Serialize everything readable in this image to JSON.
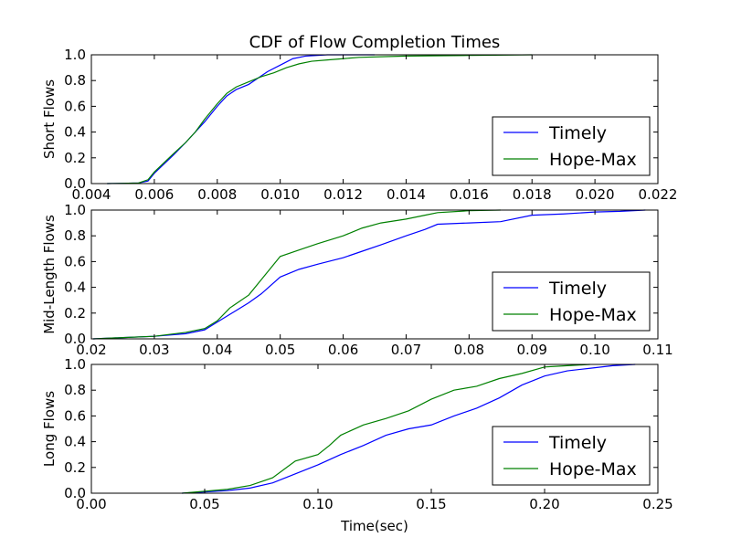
{
  "figure": {
    "title": "CDF of Flow Completion Times",
    "xlabel": "Time(sec)"
  },
  "colors": {
    "timely": "#0000ff",
    "hope_max": "#008000",
    "axes": "#000000",
    "background": "#ffffff"
  },
  "chart_data": [
    {
      "type": "line",
      "ylabel": "Short Flows",
      "xlim": [
        0.004,
        0.022
      ],
      "ylim": [
        0.0,
        1.0
      ],
      "xticks": [
        "0.004",
        "0.006",
        "0.008",
        "0.010",
        "0.012",
        "0.014",
        "0.016",
        "0.018",
        "0.020",
        "0.022"
      ],
      "yticks": [
        "0.0",
        "0.2",
        "0.4",
        "0.6",
        "0.8",
        "1.0"
      ],
      "grid": false,
      "legend": "lower-right",
      "series": [
        {
          "name": "Timely",
          "points": [
            [
              0.0045,
              0.0
            ],
            [
              0.005,
              0.002
            ],
            [
              0.0055,
              0.005
            ],
            [
              0.0058,
              0.02
            ],
            [
              0.006,
              0.08
            ],
            [
              0.0063,
              0.15
            ],
            [
              0.0066,
              0.22
            ],
            [
              0.007,
              0.32
            ],
            [
              0.0073,
              0.4
            ],
            [
              0.0076,
              0.48
            ],
            [
              0.008,
              0.6
            ],
            [
              0.0083,
              0.68
            ],
            [
              0.0086,
              0.73
            ],
            [
              0.009,
              0.77
            ],
            [
              0.0093,
              0.82
            ],
            [
              0.0096,
              0.87
            ],
            [
              0.01,
              0.92
            ],
            [
              0.0104,
              0.97
            ],
            [
              0.0108,
              0.99
            ],
            [
              0.0115,
              1.0
            ],
            [
              0.013,
              1.0
            ]
          ]
        },
        {
          "name": "Hope-Max",
          "points": [
            [
              0.0045,
              0.0
            ],
            [
              0.005,
              0.002
            ],
            [
              0.0055,
              0.005
            ],
            [
              0.0058,
              0.03
            ],
            [
              0.006,
              0.09
            ],
            [
              0.0063,
              0.16
            ],
            [
              0.0066,
              0.23
            ],
            [
              0.007,
              0.32
            ],
            [
              0.0073,
              0.4
            ],
            [
              0.0076,
              0.5
            ],
            [
              0.008,
              0.62
            ],
            [
              0.0083,
              0.7
            ],
            [
              0.0086,
              0.75
            ],
            [
              0.009,
              0.79
            ],
            [
              0.0094,
              0.83
            ],
            [
              0.0098,
              0.86
            ],
            [
              0.0102,
              0.9
            ],
            [
              0.0106,
              0.93
            ],
            [
              0.011,
              0.95
            ],
            [
              0.0115,
              0.96
            ],
            [
              0.012,
              0.97
            ],
            [
              0.0125,
              0.98
            ],
            [
              0.014,
              0.99
            ],
            [
              0.016,
              0.995
            ],
            [
              0.018,
              1.0
            ]
          ]
        }
      ]
    },
    {
      "type": "line",
      "ylabel": "Mid-Length Flows",
      "xlim": [
        0.02,
        0.11
      ],
      "ylim": [
        0.0,
        1.0
      ],
      "xticks": [
        "0.02",
        "0.03",
        "0.04",
        "0.05",
        "0.06",
        "0.07",
        "0.08",
        "0.09",
        "0.10",
        "0.11"
      ],
      "yticks": [
        "0.0",
        "0.2",
        "0.4",
        "0.6",
        "0.8",
        "1.0"
      ],
      "grid": false,
      "legend": "lower-right",
      "series": [
        {
          "name": "Timely",
          "points": [
            [
              0.0203,
              0.0
            ],
            [
              0.025,
              0.01
            ],
            [
              0.03,
              0.02
            ],
            [
              0.035,
              0.04
            ],
            [
              0.038,
              0.07
            ],
            [
              0.04,
              0.13
            ],
            [
              0.043,
              0.22
            ],
            [
              0.045,
              0.28
            ],
            [
              0.047,
              0.35
            ],
            [
              0.05,
              0.48
            ],
            [
              0.053,
              0.54
            ],
            [
              0.056,
              0.58
            ],
            [
              0.06,
              0.63
            ],
            [
              0.063,
              0.68
            ],
            [
              0.066,
              0.73
            ],
            [
              0.07,
              0.8
            ],
            [
              0.073,
              0.85
            ],
            [
              0.075,
              0.89
            ],
            [
              0.08,
              0.9
            ],
            [
              0.085,
              0.91
            ],
            [
              0.09,
              0.96
            ],
            [
              0.095,
              0.97
            ],
            [
              0.1,
              0.985
            ],
            [
              0.104,
              0.99
            ],
            [
              0.108,
              1.0
            ]
          ]
        },
        {
          "name": "Hope-Max",
          "points": [
            [
              0.0203,
              0.0
            ],
            [
              0.025,
              0.01
            ],
            [
              0.03,
              0.02
            ],
            [
              0.035,
              0.05
            ],
            [
              0.038,
              0.08
            ],
            [
              0.04,
              0.14
            ],
            [
              0.042,
              0.24
            ],
            [
              0.045,
              0.34
            ],
            [
              0.047,
              0.46
            ],
            [
              0.05,
              0.64
            ],
            [
              0.053,
              0.69
            ],
            [
              0.056,
              0.74
            ],
            [
              0.06,
              0.8
            ],
            [
              0.063,
              0.86
            ],
            [
              0.066,
              0.9
            ],
            [
              0.07,
              0.93
            ],
            [
              0.073,
              0.96
            ],
            [
              0.075,
              0.98
            ],
            [
              0.08,
              0.995
            ],
            [
              0.085,
              1.0
            ]
          ]
        }
      ]
    },
    {
      "type": "line",
      "ylabel": "Long Flows",
      "xlim": [
        0.0,
        0.25
      ],
      "ylim": [
        0.0,
        1.0
      ],
      "xticks": [
        "0.00",
        "0.05",
        "0.10",
        "0.15",
        "0.20",
        "0.25"
      ],
      "yticks": [
        "0.0",
        "0.2",
        "0.4",
        "0.6",
        "0.8",
        "1.0"
      ],
      "grid": false,
      "legend": "lower-right",
      "series": [
        {
          "name": "Timely",
          "points": [
            [
              0.04,
              0.0
            ],
            [
              0.05,
              0.01
            ],
            [
              0.06,
              0.02
            ],
            [
              0.07,
              0.04
            ],
            [
              0.08,
              0.08
            ],
            [
              0.09,
              0.15
            ],
            [
              0.1,
              0.22
            ],
            [
              0.11,
              0.3
            ],
            [
              0.12,
              0.37
            ],
            [
              0.13,
              0.45
            ],
            [
              0.14,
              0.5
            ],
            [
              0.15,
              0.53
            ],
            [
              0.16,
              0.6
            ],
            [
              0.17,
              0.66
            ],
            [
              0.18,
              0.74
            ],
            [
              0.19,
              0.84
            ],
            [
              0.2,
              0.91
            ],
            [
              0.21,
              0.95
            ],
            [
              0.22,
              0.97
            ],
            [
              0.23,
              0.99
            ],
            [
              0.24,
              1.0
            ]
          ]
        },
        {
          "name": "Hope-Max",
          "points": [
            [
              0.04,
              0.0
            ],
            [
              0.05,
              0.015
            ],
            [
              0.06,
              0.03
            ],
            [
              0.07,
              0.06
            ],
            [
              0.08,
              0.12
            ],
            [
              0.09,
              0.25
            ],
            [
              0.1,
              0.3
            ],
            [
              0.105,
              0.37
            ],
            [
              0.11,
              0.45
            ],
            [
              0.12,
              0.53
            ],
            [
              0.13,
              0.58
            ],
            [
              0.14,
              0.64
            ],
            [
              0.15,
              0.73
            ],
            [
              0.16,
              0.8
            ],
            [
              0.17,
              0.83
            ],
            [
              0.18,
              0.89
            ],
            [
              0.19,
              0.93
            ],
            [
              0.2,
              0.98
            ],
            [
              0.21,
              0.99
            ],
            [
              0.22,
              1.0
            ]
          ]
        }
      ]
    }
  ]
}
